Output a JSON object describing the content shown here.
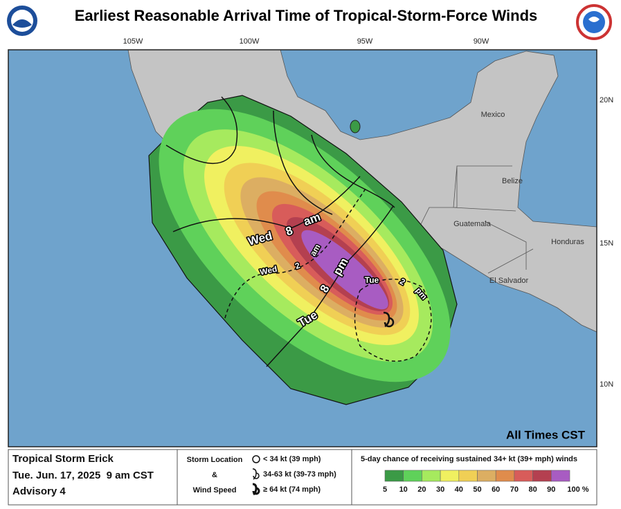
{
  "title": "Earliest Reasonable Arrival Time of Tropical-Storm-Force Winds",
  "map": {
    "lon_labels": [
      "105W",
      "100W",
      "95W",
      "90W"
    ],
    "lat_labels": [
      "20N",
      "15N",
      "10N"
    ],
    "places": [
      "Mexico",
      "Belize",
      "Guatemala",
      "Honduras",
      "El Salvador"
    ],
    "contour_labels": [
      {
        "parts": [
          "Wed",
          "8",
          "am"
        ]
      },
      {
        "parts": [
          "Wed",
          "2",
          "am"
        ]
      },
      {
        "parts": [
          "Tue",
          "8",
          "pm"
        ]
      },
      {
        "parts": [
          "Tue",
          "2",
          "pm"
        ]
      }
    ],
    "note": "All Times CST"
  },
  "footer": {
    "storm": "Tropical Storm Erick",
    "date": "Tue. Jun. 17, 2025  9 am CST",
    "advisory": "Advisory 4",
    "key_title": [
      "Storm Location",
      "&",
      "Wind Speed"
    ],
    "key_items": [
      "< 34 kt (39 mph)",
      "34-63 kt (39-73 mph)",
      "≥ 64 kt (74 mph)"
    ],
    "scale_title": "5-day chance of receiving sustained 34+ kt (39+ mph) winds",
    "scale_ticks": [
      5,
      10,
      20,
      30,
      40,
      50,
      60,
      70,
      80,
      90,
      {
        "value": 100,
        "label": "100 %"
      }
    ],
    "scale_colors": [
      "#3b9a46",
      "#5fd15a",
      "#a6ea5e",
      "#f0f060",
      "#f0cf55",
      "#dcae62",
      "#e08c4c",
      "#d85c5a",
      "#b44050",
      "#a85cc2"
    ]
  }
}
